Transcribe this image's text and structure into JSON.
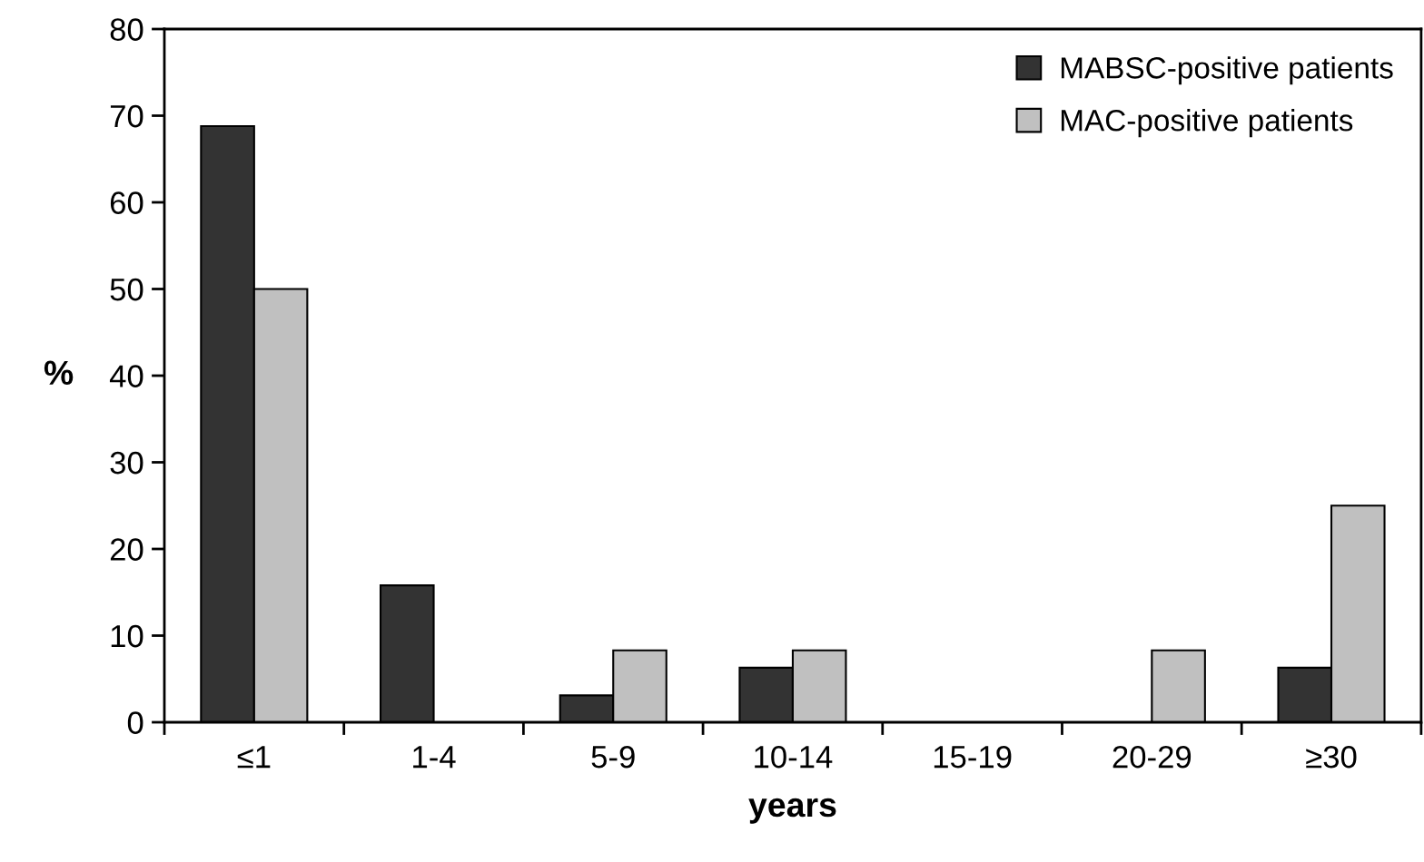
{
  "chart_data": {
    "type": "bar",
    "xlabel": "years",
    "ylabel": "%",
    "categories": [
      "≤1",
      "1-4",
      "5-9",
      "10-14",
      "15-19",
      "20-29",
      "≥30"
    ],
    "series": [
      {
        "name": "MABSC-positive patients",
        "color": "#333333",
        "values": [
          68.8,
          15.8,
          3.1,
          6.3,
          0,
          0,
          6.3
        ]
      },
      {
        "name": "MAC-positive patients",
        "color": "#c0c0c0",
        "values": [
          50,
          0,
          8.3,
          8.3,
          0,
          8.3,
          25
        ]
      }
    ],
    "ylim": [
      0,
      80
    ],
    "yticks": [
      0,
      10,
      20,
      30,
      40,
      50,
      60,
      70,
      80
    ],
    "grid": false,
    "legend": "top right"
  }
}
